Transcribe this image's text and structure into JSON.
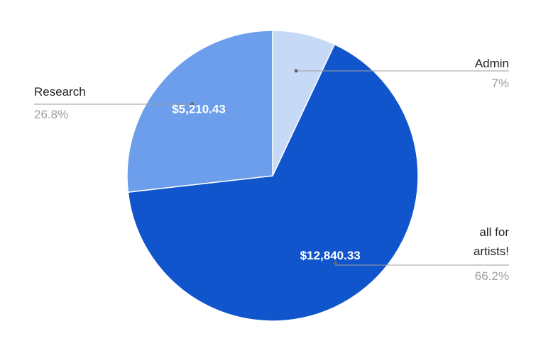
{
  "chart_data": {
    "type": "pie",
    "categories": [
      "Admin",
      "all for artists!",
      "Research"
    ],
    "values": [
      7,
      66.2,
      26.8
    ],
    "value_labels": [
      "7%",
      "66.2%",
      "26.8%"
    ],
    "amounts": [
      null,
      12840.33,
      5210.43
    ],
    "amount_labels": [
      null,
      "$12,840.33",
      "$5,210.43"
    ],
    "colors": [
      "#c6d9f7",
      "#1155cc",
      "#6d9eeb"
    ]
  }
}
